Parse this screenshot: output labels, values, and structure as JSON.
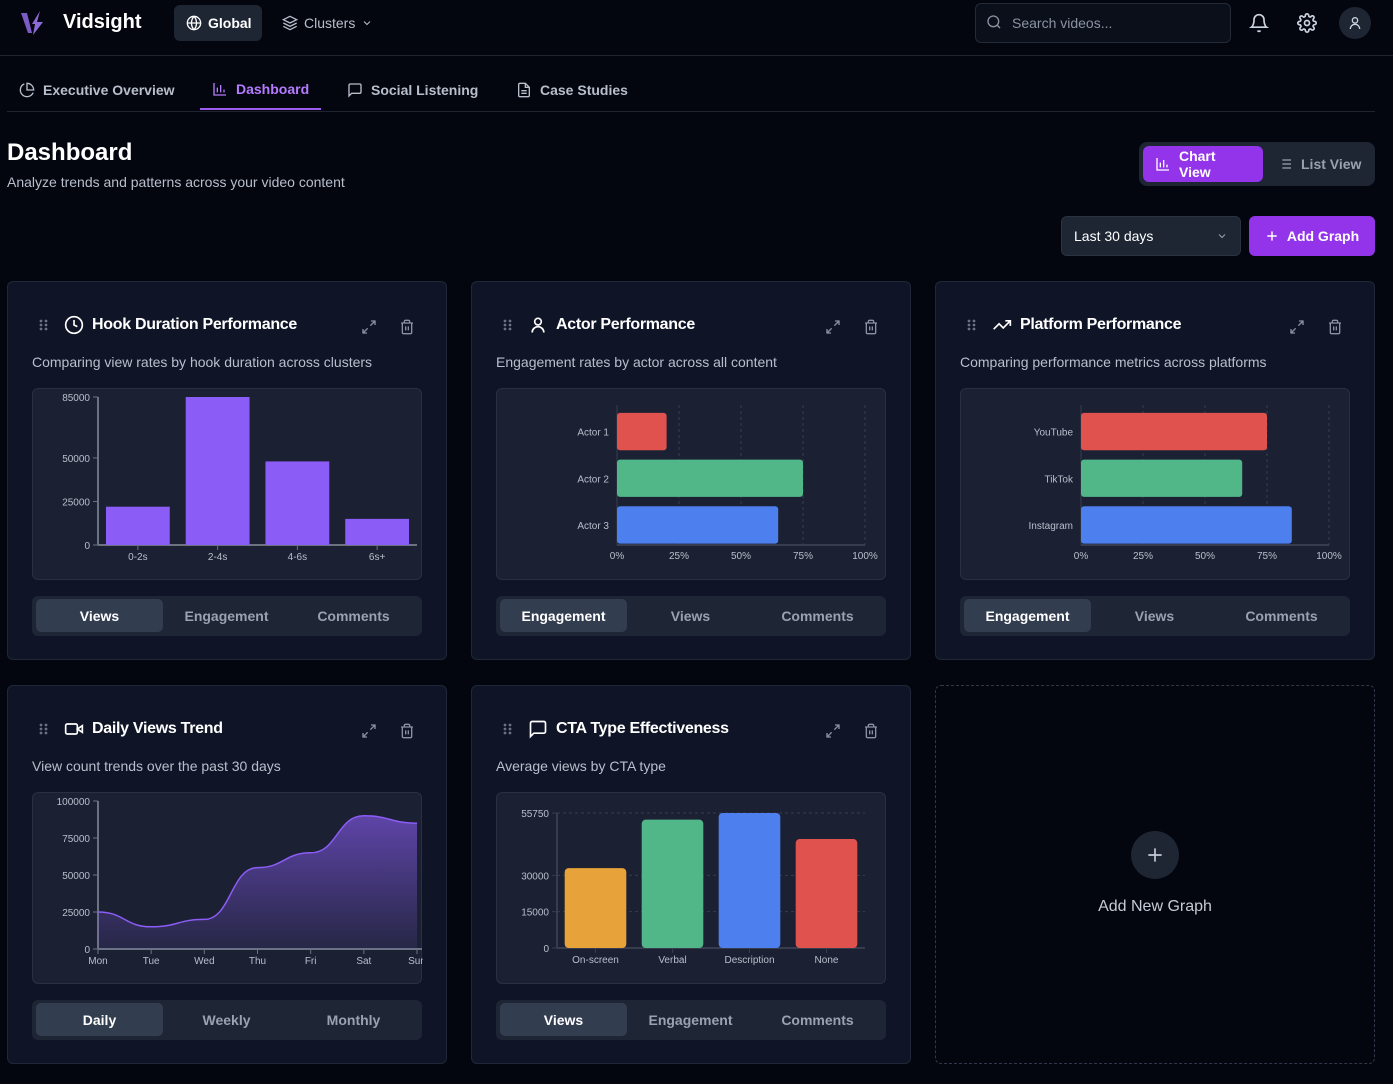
{
  "app": {
    "name": "Vidsight",
    "scope_global": "Global",
    "scope_clusters": "Clusters",
    "search_placeholder": "Search videos..."
  },
  "nav": [
    {
      "label": "Executive Overview",
      "icon": "pie-chart-icon"
    },
    {
      "label": "Dashboard",
      "icon": "bar-chart-icon",
      "active": true
    },
    {
      "label": "Social Listening",
      "icon": "message-square-icon"
    },
    {
      "label": "Case Studies",
      "icon": "file-text-icon"
    }
  ],
  "page": {
    "title": "Dashboard",
    "subtitle": "Analyze trends and patterns across your video content",
    "chart_view": "Chart View",
    "list_view": "List View",
    "range": "Last 30 days",
    "add_graph": "Add Graph"
  },
  "colors": {
    "accent": "#9333ea",
    "bar": "#8b5cf6",
    "red": "#e0524e",
    "green": "#52b788",
    "blue": "#4d7fee",
    "orange": "#e8a23a"
  },
  "cards": [
    {
      "title": "Hook Duration Performance",
      "icon": "clock-icon",
      "desc": "Comparing view rates by hook duration across clusters",
      "tabs": [
        "Views",
        "Engagement",
        "Comments"
      ],
      "active": 0
    },
    {
      "title": "Actor Performance",
      "icon": "user-icon",
      "desc": "Engagement rates by actor across all content",
      "tabs": [
        "Engagement",
        "Views",
        "Comments"
      ],
      "active": 0
    },
    {
      "title": "Platform Performance",
      "icon": "trending-up-icon",
      "desc": "Comparing performance metrics across platforms",
      "tabs": [
        "Engagement",
        "Views",
        "Comments"
      ],
      "active": 0
    },
    {
      "title": "Daily Views Trend",
      "icon": "video-icon",
      "desc": "View count trends over the past 30 days",
      "tabs": [
        "Daily",
        "Weekly",
        "Monthly"
      ],
      "active": 0
    },
    {
      "title": "CTA Type Effectiveness",
      "icon": "message-square-icon",
      "desc": "Average views by CTA type",
      "tabs": [
        "Views",
        "Engagement",
        "Comments"
      ],
      "active": 0
    }
  ],
  "add_new_graph": "Add New Graph",
  "chart_data": [
    {
      "type": "bar",
      "categories": [
        "0-2s",
        "2-4s",
        "4-6s",
        "6s+"
      ],
      "values": [
        22000,
        85000,
        48000,
        15000
      ],
      "yticks": [
        0,
        25000,
        50000,
        85000
      ],
      "ylim": [
        0,
        85000
      ],
      "colors": [
        "#8b5cf6"
      ],
      "grid": false
    },
    {
      "type": "bar",
      "orientation": "horizontal",
      "categories": [
        "Actor 1",
        "Actor 2",
        "Actor 3"
      ],
      "values": [
        20,
        75,
        65
      ],
      "xticks": [
        "0%",
        "25%",
        "50%",
        "75%",
        "100%"
      ],
      "xlim": [
        0,
        100
      ],
      "colors": [
        "#e0524e",
        "#52b788",
        "#4d7fee"
      ],
      "grid": true
    },
    {
      "type": "bar",
      "orientation": "horizontal",
      "categories": [
        "YouTube",
        "TikTok",
        "Instagram"
      ],
      "values": [
        75,
        65,
        85
      ],
      "xticks": [
        "0%",
        "25%",
        "50%",
        "75%",
        "100%"
      ],
      "xlim": [
        0,
        100
      ],
      "colors": [
        "#e0524e",
        "#52b788",
        "#4d7fee"
      ],
      "grid": true
    },
    {
      "type": "area",
      "categories": [
        "Mon",
        "Tue",
        "Wed",
        "Thu",
        "Fri",
        "Sat",
        "Sun"
      ],
      "values": [
        25000,
        15000,
        20000,
        55000,
        65000,
        90000,
        85000
      ],
      "yticks": [
        0,
        25000,
        50000,
        75000,
        100000
      ],
      "ylim": [
        0,
        100000
      ],
      "colors": [
        "#8b5cf6"
      ],
      "grid": false
    },
    {
      "type": "bar",
      "categories": [
        "On-screen",
        "Verbal",
        "Description",
        "None"
      ],
      "values": [
        33000,
        53000,
        55750,
        45000
      ],
      "yticks": [
        0,
        15000,
        30000,
        55750
      ],
      "ylim": [
        0,
        55750
      ],
      "colors": [
        "#e8a23a",
        "#52b788",
        "#4d7fee",
        "#e0524e"
      ],
      "grid": true
    }
  ]
}
